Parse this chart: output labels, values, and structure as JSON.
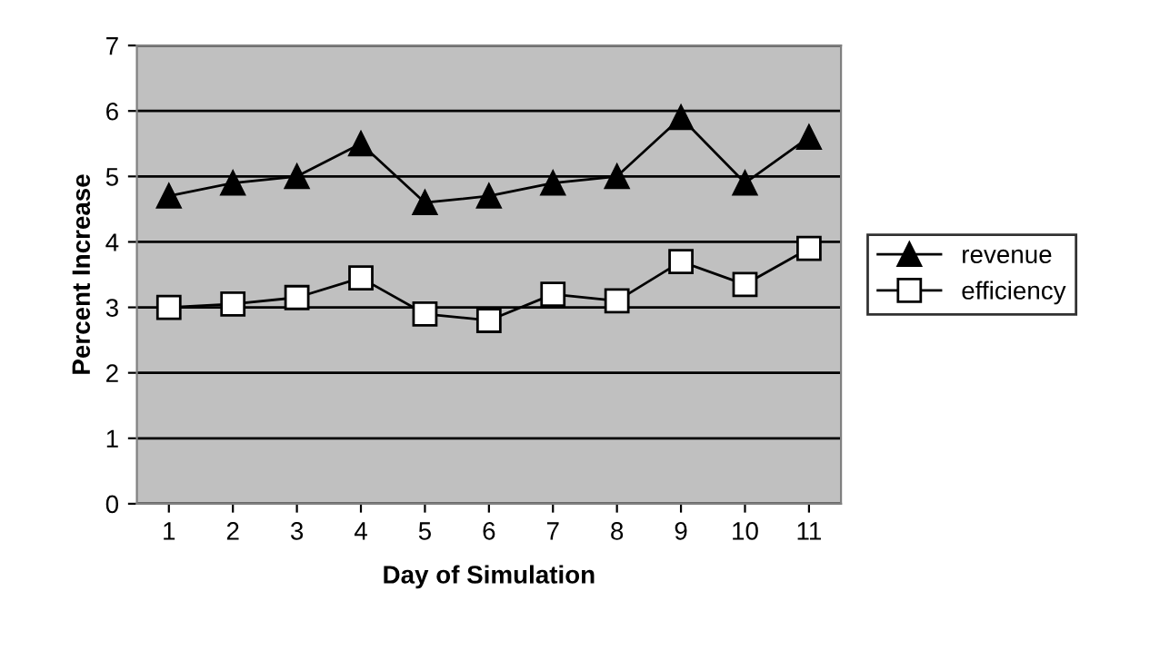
{
  "chart_data": {
    "type": "line",
    "xlabel": "Day of Simulation",
    "ylabel": "Percent Increase",
    "categories": [
      "1",
      "2",
      "3",
      "4",
      "5",
      "6",
      "7",
      "8",
      "9",
      "10",
      "11"
    ],
    "series": [
      {
        "name": "revenue",
        "color": "#000000",
        "marker": "triangle",
        "values": [
          4.7,
          4.9,
          5.0,
          5.5,
          4.6,
          4.7,
          4.9,
          5.0,
          5.9,
          4.9,
          5.6
        ]
      },
      {
        "name": "efficiency",
        "color": "#000000",
        "marker": "square",
        "values": [
          3.0,
          3.05,
          3.15,
          3.45,
          2.9,
          2.8,
          3.2,
          3.1,
          3.7,
          3.35,
          3.9
        ]
      }
    ],
    "ylim": [
      0,
      7
    ],
    "yticks": [
      0,
      1,
      2,
      3,
      4,
      5,
      6,
      7
    ],
    "grid": "y",
    "legend": "right",
    "line_style": "solid"
  }
}
